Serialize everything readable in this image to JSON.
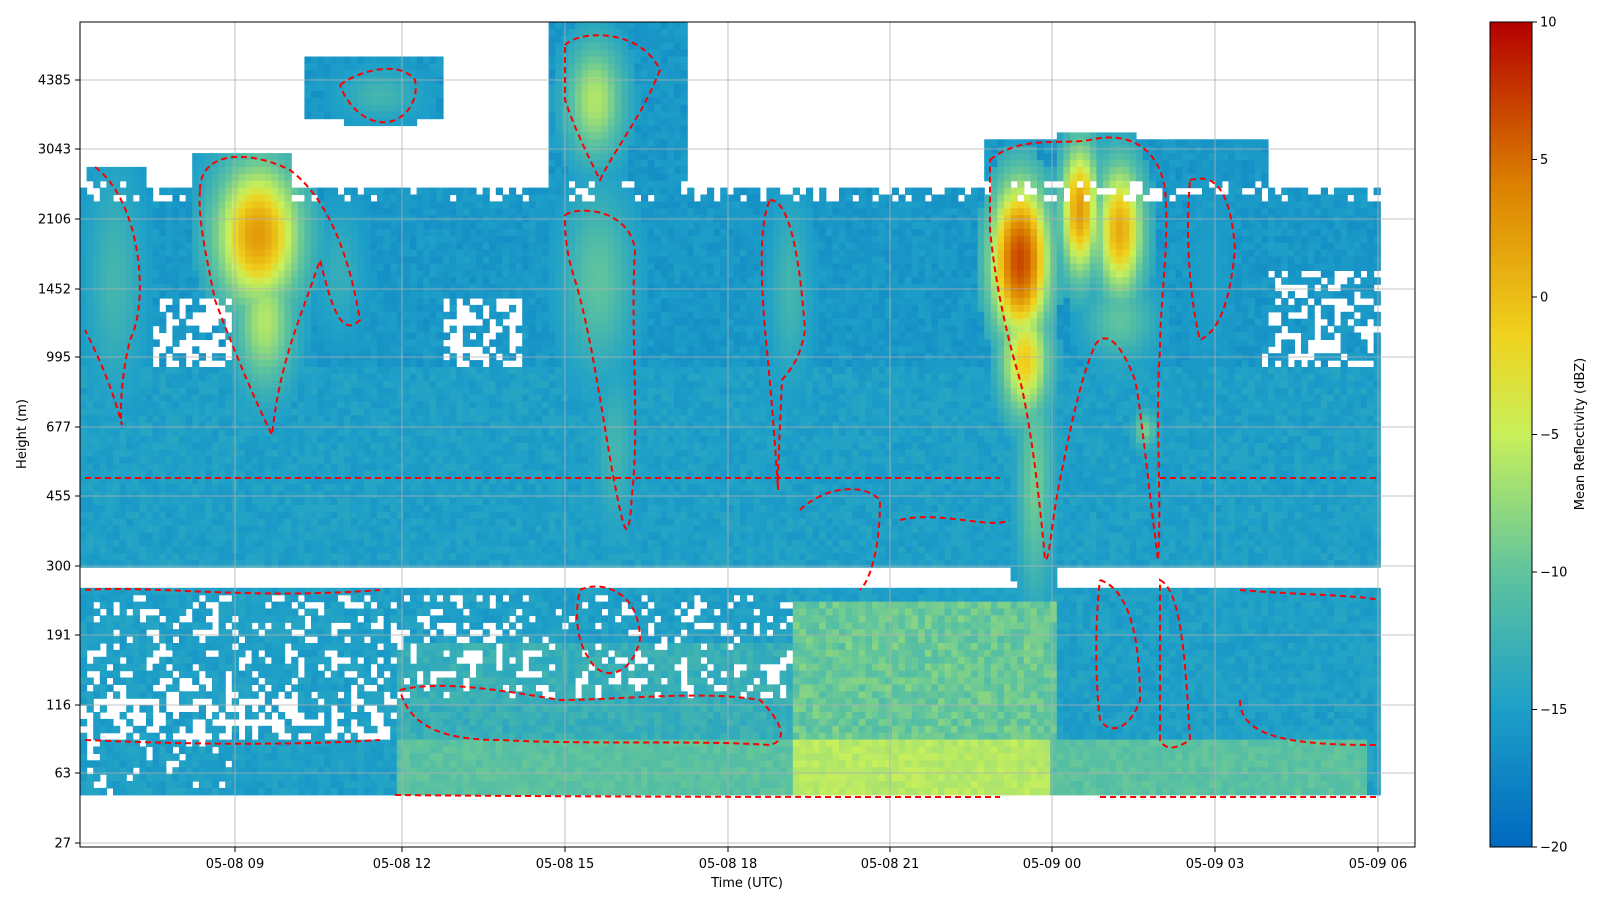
{
  "chart_data": {
    "type": "heatmap",
    "title": "",
    "xlabel": "Time (UTC)",
    "ylabel": "Height (m)",
    "x_range_hours_since_0508_0600_note": "",
    "x_ticks": [
      "05-08 09",
      "05-08 12",
      "05-08 15",
      "05-08 18",
      "05-08 21",
      "05-09 00",
      "05-09 03",
      "05-09 06"
    ],
    "y_ticks": [
      "27",
      "63",
      "116",
      "191",
      "300",
      "455",
      "677",
      "995",
      "1452",
      "2106",
      "3043",
      "4385"
    ],
    "colorbar": {
      "label": "Mean Reflectivity (dBZ)",
      "range": [
        -20,
        10
      ],
      "ticks": [
        "10",
        "5",
        "0",
        "−5",
        "−10",
        "−15",
        "−20"
      ],
      "colors": [
        "#0069c0",
        "#1ea0c8",
        "#5ec39e",
        "#c8f05a",
        "#f0d21e",
        "#dc8200",
        "#b40000"
      ]
    },
    "grid": true,
    "contour_color": "#ff0000",
    "features": [
      {
        "start": "05-08 06:00",
        "end": "05-08 07:00",
        "peak_dbz": -11
      },
      {
        "start": "05-08 08:00",
        "end": "05-08 10:00",
        "peak_dbz": 0
      },
      {
        "start": "05-08 11:00",
        "end": "05-08 12:00",
        "peak_dbz": -10
      },
      {
        "start": "05-08 15:00",
        "end": "05-08 16:00",
        "peak_dbz": -7
      },
      {
        "start": "05-08 19:00",
        "end": "05-08 19:30",
        "peak_dbz": -12
      },
      {
        "start": "05-08 23:00",
        "end": "05-09 00:00",
        "peak_dbz": 4
      },
      {
        "start": "05-09 00:20",
        "end": "05-09 01:50",
        "peak_dbz": -1
      }
    ]
  }
}
